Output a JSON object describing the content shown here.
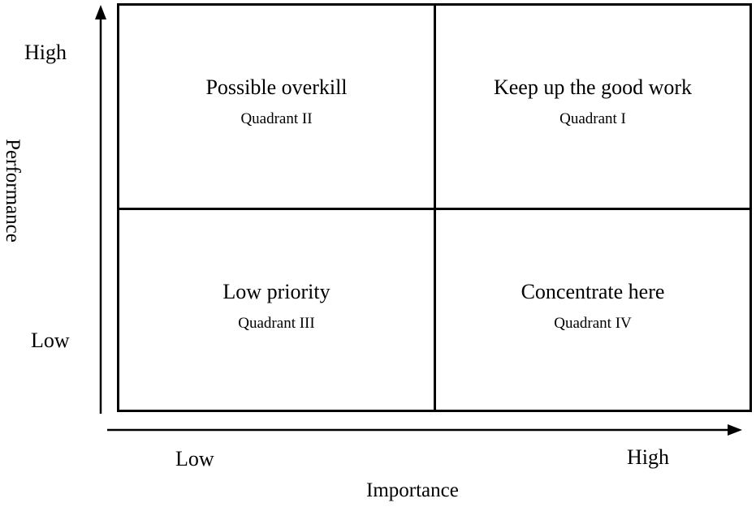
{
  "y_axis": {
    "title": "Performance",
    "high_label": "High",
    "low_label": "Low"
  },
  "x_axis": {
    "title": "Importance",
    "low_label": "Low",
    "high_label": "High"
  },
  "quadrants": [
    {
      "title": "Possible overkill",
      "subtitle": "Quadrant II"
    },
    {
      "title": "Keep up the good work",
      "subtitle": "Quadrant I"
    },
    {
      "title": "Low priority",
      "subtitle": "Quadrant III"
    },
    {
      "title": "Concentrate here",
      "subtitle": "Quadrant IV"
    }
  ]
}
